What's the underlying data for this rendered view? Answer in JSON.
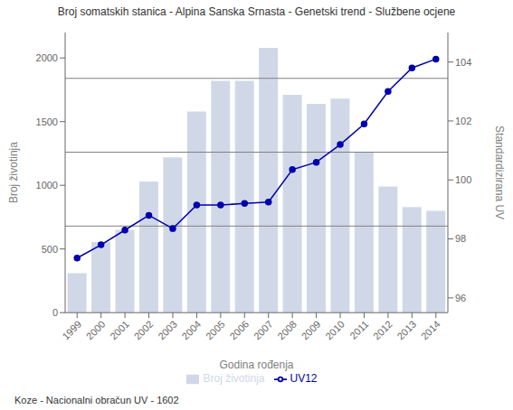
{
  "chart_data": {
    "type": "bar",
    "title": "Broj somatskih stanica - Alpina Sanska Srnasta - Genetski trend - Službene ocjene",
    "x_label": "Godina rođenja",
    "y_label": "Broj životinja",
    "y2_label": "Standardizirana UV",
    "footer": "Koze - Nacionalni obračun UV - 1602",
    "categories": [
      "1999",
      "2000",
      "2001",
      "2002",
      "2003",
      "2004",
      "2005",
      "2006",
      "2007",
      "2008",
      "2009",
      "2010",
      "2011",
      "2012",
      "2013",
      "2014"
    ],
    "series": [
      {
        "name": "Broj životinja",
        "type": "bar",
        "color": "#d0d8e8",
        "values": [
          310,
          555,
          650,
          1030,
          1220,
          1580,
          1820,
          1820,
          2080,
          1710,
          1640,
          1680,
          1260,
          990,
          830,
          800
        ]
      },
      {
        "name": "UV12",
        "type": "line",
        "axis": "y2",
        "color": "#0000aa",
        "marker": "circle",
        "values": [
          97.35,
          97.8,
          98.3,
          98.8,
          98.35,
          99.15,
          99.15,
          99.2,
          99.25,
          100.35,
          100.6,
          101.2,
          101.9,
          103.0,
          103.8,
          104.1
        ]
      }
    ],
    "ylim": [
      0,
      2200
    ],
    "yticks": [
      0,
      500,
      1000,
      1500,
      2000
    ],
    "y2lim": [
      95.5,
      105
    ],
    "y2ticks": [
      96,
      98,
      100,
      102,
      104
    ],
    "reference_lines": [
      680,
      1260,
      1840
    ],
    "legend": "bottom",
    "grid": false
  }
}
